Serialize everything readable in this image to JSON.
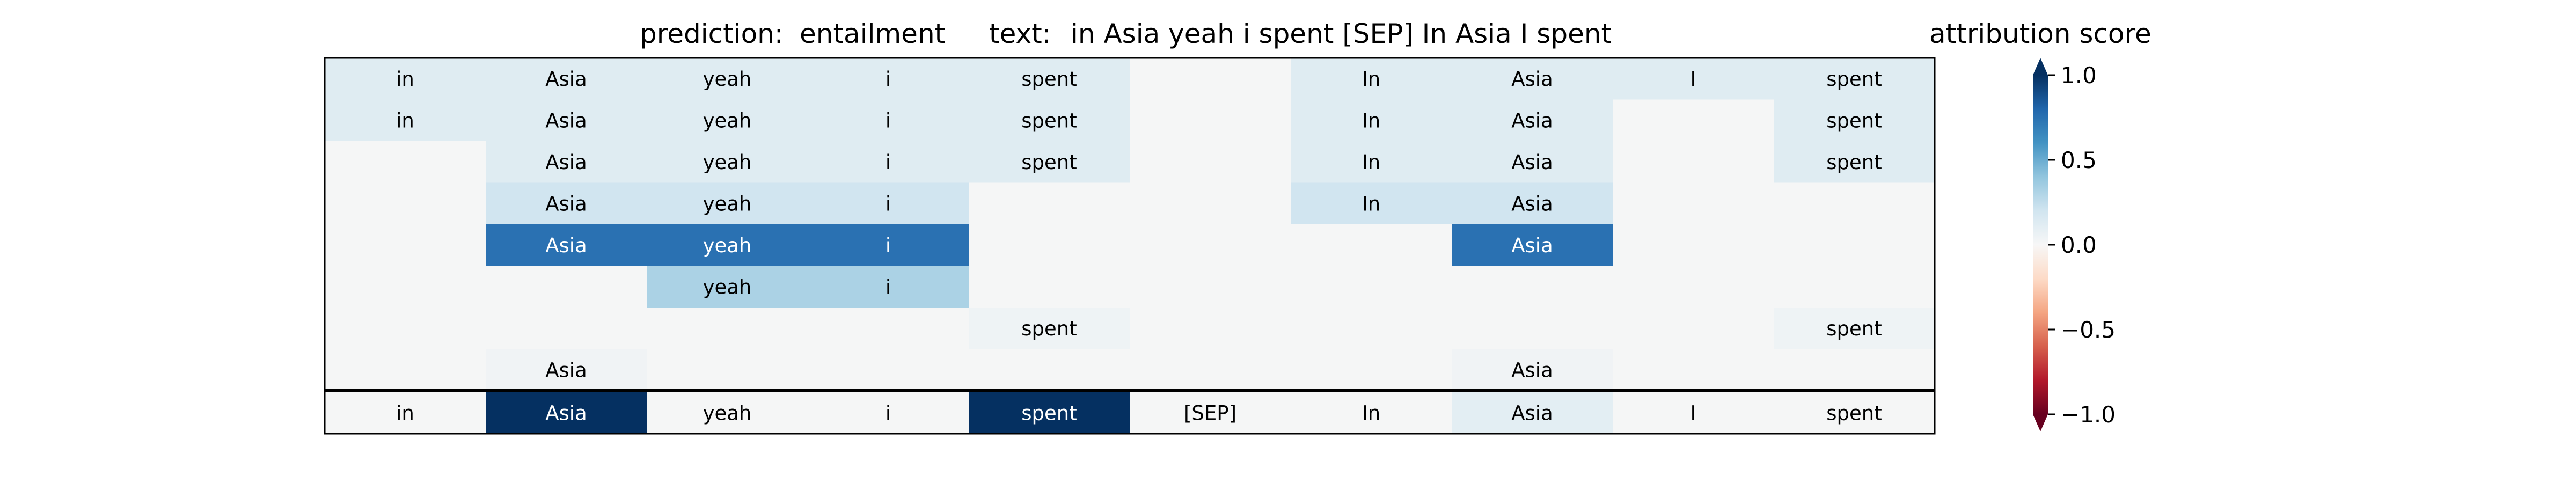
{
  "chart_data": {
    "type": "heatmap",
    "title": {
      "prediction_label": "prediction:",
      "prediction": "entailment",
      "text_label": "text:",
      "text": "in Asia yeah i spent [SEP] In Asia I spent"
    },
    "tokens": [
      "in",
      "Asia",
      "yeah",
      "i",
      "spent",
      "[SEP]",
      "In",
      "Asia",
      "I",
      "spent"
    ],
    "rows": [
      {
        "values": [
          0.12,
          0.12,
          0.12,
          0.12,
          0.12,
          0.0,
          0.12,
          0.12,
          0.12,
          0.12
        ],
        "show": [
          1,
          1,
          1,
          1,
          1,
          0,
          1,
          1,
          1,
          1
        ]
      },
      {
        "values": [
          0.12,
          0.12,
          0.12,
          0.12,
          0.12,
          0.0,
          0.12,
          0.12,
          0.0,
          0.12
        ],
        "show": [
          1,
          1,
          1,
          1,
          1,
          0,
          1,
          1,
          0,
          1
        ]
      },
      {
        "values": [
          0.0,
          0.12,
          0.12,
          0.12,
          0.12,
          0.0,
          0.12,
          0.12,
          0.0,
          0.12
        ],
        "show": [
          0,
          1,
          1,
          1,
          1,
          0,
          1,
          1,
          0,
          1
        ]
      },
      {
        "values": [
          0.0,
          0.2,
          0.2,
          0.2,
          0.0,
          0.0,
          0.2,
          0.2,
          0.0,
          0.0
        ],
        "show": [
          0,
          1,
          1,
          1,
          0,
          0,
          1,
          1,
          0,
          0
        ]
      },
      {
        "values": [
          0.0,
          0.75,
          0.75,
          0.75,
          0.0,
          0.0,
          0.0,
          0.75,
          0.0,
          0.0
        ],
        "show": [
          0,
          1,
          1,
          1,
          0,
          0,
          0,
          1,
          0,
          0
        ]
      },
      {
        "values": [
          0.0,
          0.0,
          0.32,
          0.32,
          0.0,
          0.0,
          0.0,
          0.0,
          0.0,
          0.0
        ],
        "show": [
          0,
          0,
          1,
          1,
          0,
          0,
          0,
          0,
          0,
          0
        ]
      },
      {
        "values": [
          0.0,
          0.0,
          0.0,
          0.0,
          0.04,
          0.0,
          0.0,
          0.0,
          0.0,
          0.04
        ],
        "show": [
          0,
          0,
          0,
          0,
          1,
          0,
          0,
          0,
          0,
          1
        ]
      },
      {
        "values": [
          0.0,
          0.03,
          0.0,
          0.0,
          0.0,
          0.0,
          0.0,
          0.03,
          0.0,
          0.0
        ],
        "show": [
          0,
          1,
          0,
          0,
          0,
          0,
          0,
          1,
          0,
          0
        ]
      }
    ],
    "total_row": {
      "values": [
        0.0,
        1.0,
        0.0,
        0.0,
        1.0,
        0.0,
        0.0,
        0.1,
        0.0,
        0.0
      ],
      "show": [
        1,
        1,
        1,
        1,
        1,
        1,
        1,
        1,
        1,
        1
      ]
    },
    "colorbar": {
      "label": "attribution score",
      "ticks": [
        1.0,
        0.5,
        0.0,
        -0.5,
        -1.0
      ],
      "tick_labels": [
        "1.0",
        "0.5",
        "0.0",
        "−0.5",
        "−1.0"
      ],
      "range": [
        -1,
        1
      ],
      "colormap": "RdBu"
    }
  }
}
